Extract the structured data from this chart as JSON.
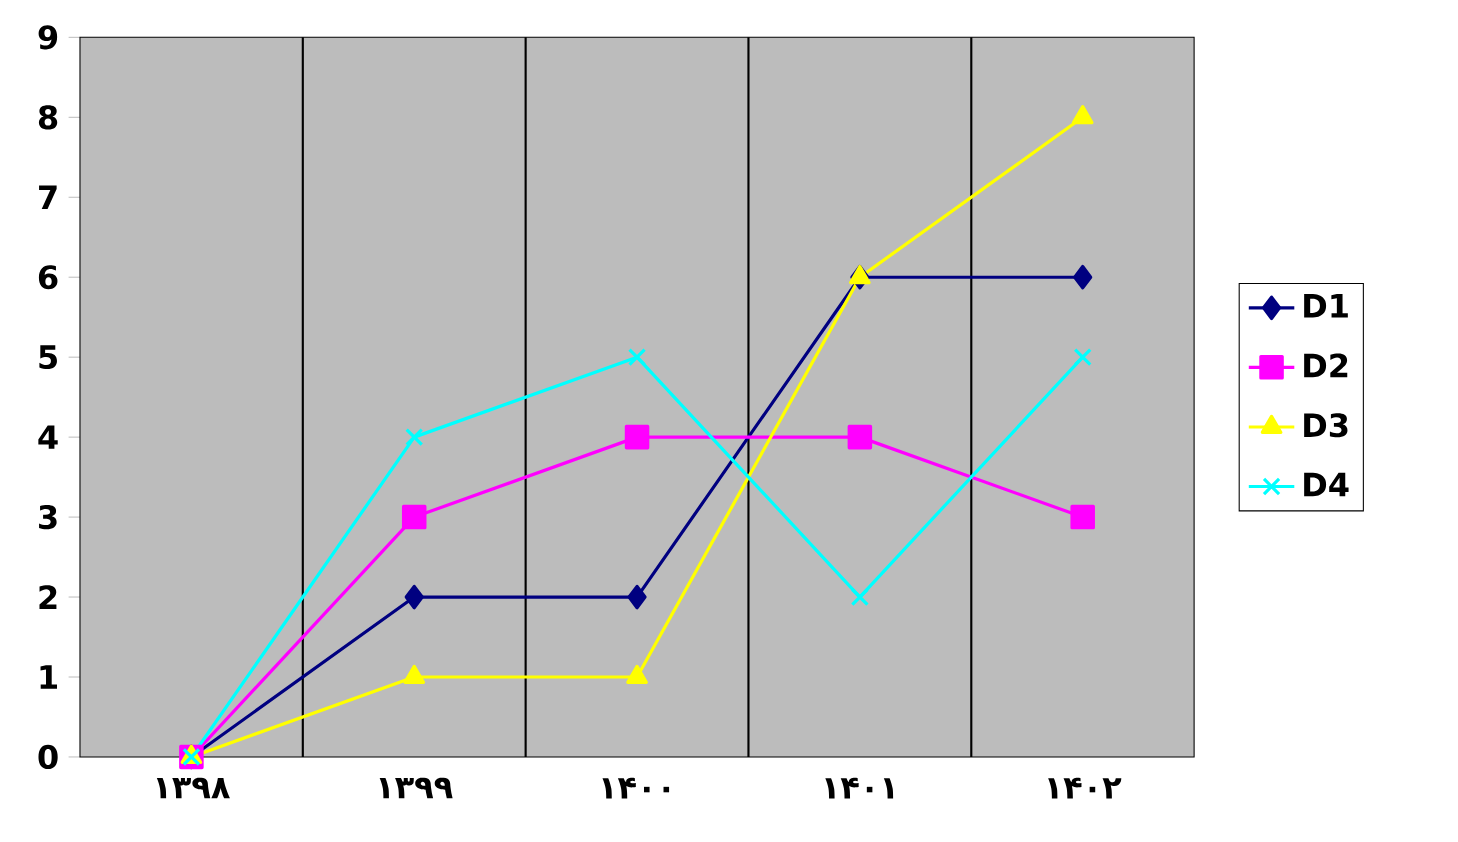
{
  "chart_data": {
    "type": "line",
    "categories": [
      "۱۳۹۸",
      "۱۳۹۹",
      "۱۴۰۰",
      "۱۴۰۱",
      "۱۴۰۲"
    ],
    "series": [
      {
        "name": "D1",
        "color": "#000080",
        "marker": "diamond",
        "values": [
          0,
          2,
          2,
          6,
          6
        ]
      },
      {
        "name": "D2",
        "color": "#ff00ff",
        "marker": "square",
        "values": [
          0,
          3,
          4,
          4,
          3
        ]
      },
      {
        "name": "D3",
        "color": "#ffff00",
        "marker": "triangle",
        "values": [
          0,
          1,
          1,
          6,
          8
        ]
      },
      {
        "name": "D4",
        "color": "#00ffff",
        "marker": "cross",
        "values": [
          0,
          4,
          5,
          2,
          5
        ]
      }
    ],
    "ylim": [
      0,
      9
    ],
    "yticks": [
      0,
      1,
      2,
      3,
      4,
      5,
      6,
      7,
      8,
      9
    ],
    "grid": "x",
    "legend": "right",
    "line_style": "solid"
  }
}
